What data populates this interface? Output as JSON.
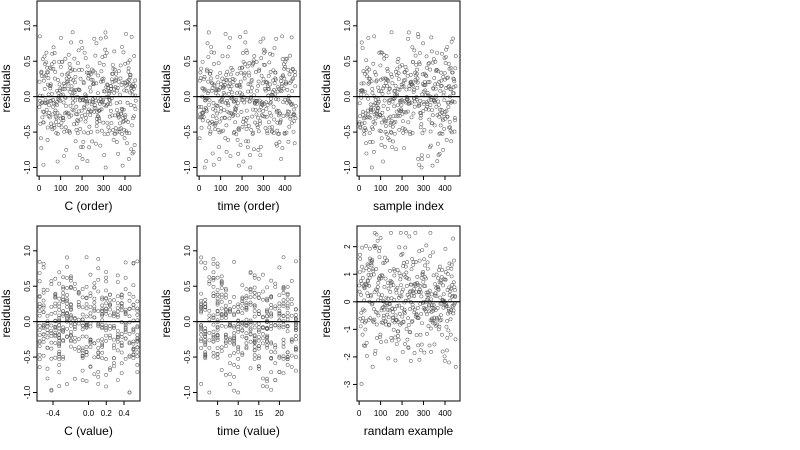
{
  "chart_data": [
    {
      "type": "scatter",
      "xlabel": "C (order)",
      "ylabel": "residuals",
      "xlim": [
        -10,
        470
      ],
      "ylim": [
        -1.12,
        1.35
      ],
      "xticks": [
        0,
        100,
        200,
        300,
        400
      ],
      "xtick_labels": [
        "0",
        "100",
        "200",
        "300",
        "400"
      ],
      "yticks": [
        -1.0,
        -0.5,
        0.0,
        0.5,
        1.0
      ],
      "ytick_labels": [
        "-1.0",
        "-0.5",
        "0.0",
        "0.5",
        "1.0"
      ],
      "reference_line_y": 0,
      "point_count": 450,
      "x_range": [
        1,
        450
      ],
      "y_range": [
        -1.0,
        1.27
      ],
      "points": []
    },
    {
      "type": "scatter",
      "xlabel": "time (order)",
      "ylabel": "residuals",
      "xlim": [
        -10,
        470
      ],
      "ylim": [
        -1.12,
        1.35
      ],
      "xticks": [
        0,
        100,
        200,
        300,
        400
      ],
      "xtick_labels": [
        "0",
        "100",
        "200",
        "300",
        "400"
      ],
      "yticks": [
        -1.0,
        -0.5,
        0.0,
        0.5,
        1.0
      ],
      "ytick_labels": [
        "-1.0",
        "-0.5",
        "0.0",
        "0.5",
        "1.0"
      ],
      "reference_line_y": 0,
      "point_count": 450,
      "x_range": [
        1,
        450
      ],
      "y_range": [
        -1.0,
        1.27
      ],
      "points": []
    },
    {
      "type": "scatter",
      "xlabel": "sample index",
      "ylabel": "residuals",
      "xlim": [
        -10,
        470
      ],
      "ylim": [
        -1.12,
        1.35
      ],
      "xticks": [
        0,
        100,
        200,
        300,
        400
      ],
      "xtick_labels": [
        "0",
        "100",
        "200",
        "300",
        "400"
      ],
      "yticks": [
        -1.0,
        -0.5,
        0.0,
        0.5,
        1.0
      ],
      "ytick_labels": [
        "-1.0",
        "-0.5",
        "0.0",
        "0.5",
        "1.0"
      ],
      "reference_line_y": 0,
      "point_count": 450,
      "x_range": [
        1,
        450
      ],
      "y_range": [
        -1.0,
        1.27
      ],
      "points": []
    },
    {
      "type": "scatter",
      "xlabel": "C (value)",
      "ylabel": "residuals",
      "xlim": [
        -0.58,
        0.58
      ],
      "ylim": [
        -1.12,
        1.35
      ],
      "xticks": [
        -0.4,
        0.0,
        0.2,
        0.4
      ],
      "xtick_labels": [
        "-0.4",
        "0.0",
        "0.2",
        "0.4"
      ],
      "yticks": [
        -1.0,
        -0.5,
        0.0,
        0.5,
        1.0
      ],
      "ytick_labels": [
        "-1.0",
        "-0.5",
        "0.0",
        "0.5",
        "1.0"
      ],
      "reference_line_y": 0,
      "point_count": 450,
      "x_range": [
        -0.55,
        0.55
      ],
      "y_range": [
        -1.0,
        1.27
      ],
      "points": []
    },
    {
      "type": "scatter",
      "xlabel": "time (value)",
      "ylabel": "residuals",
      "xlim": [
        0,
        25
      ],
      "ylim": [
        -1.12,
        1.35
      ],
      "xticks": [
        5,
        10,
        15,
        20
      ],
      "xtick_labels": [
        "5",
        "10",
        "15",
        "20"
      ],
      "yticks": [
        -1.0,
        -0.5,
        0.0,
        0.5,
        1.0
      ],
      "ytick_labels": [
        "-1.0",
        "-0.5",
        "0.0",
        "0.5",
        "1.0"
      ],
      "reference_line_y": 0,
      "point_count": 450,
      "x_range": [
        1,
        24
      ],
      "y_range": [
        -1.0,
        1.27
      ],
      "points": []
    },
    {
      "type": "scatter",
      "xlabel": "randam example",
      "ylabel": "residuals",
      "xlim": [
        -10,
        470
      ],
      "ylim": [
        -3.6,
        2.75
      ],
      "xticks": [
        0,
        100,
        200,
        300,
        400
      ],
      "xtick_labels": [
        "0",
        "100",
        "200",
        "300",
        "400"
      ],
      "yticks": [
        -3,
        -2,
        -1,
        0,
        1,
        2
      ],
      "ytick_labels": [
        "-3",
        "-2",
        "-1",
        "0",
        "1",
        "2"
      ],
      "reference_line_y": 0,
      "point_count": 450,
      "x_range": [
        1,
        450
      ],
      "y_range": [
        -3.5,
        2.5
      ],
      "points": []
    }
  ]
}
